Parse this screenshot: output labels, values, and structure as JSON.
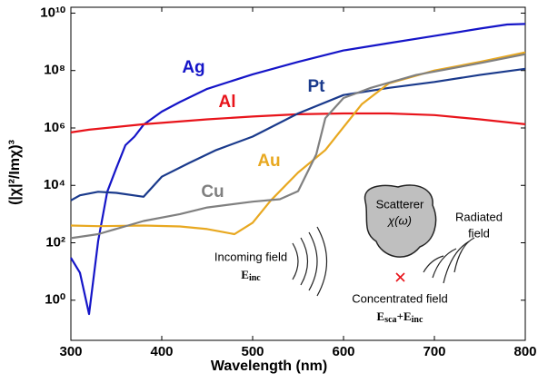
{
  "chart_data": {
    "type": "line",
    "xlabel": "Wavelength (nm)",
    "ylabel": "(|χ|²/Imχ)³",
    "log_y": true,
    "xlim": [
      300,
      800
    ],
    "xticks": [
      300,
      400,
      500,
      600,
      700,
      800
    ],
    "ylim": [
      0.04,
      16000000000
    ],
    "yticks": [
      {
        "value": 1,
        "label": "10⁰"
      },
      {
        "value": 100,
        "label": "10²"
      },
      {
        "value": 10000,
        "label": "10⁴"
      },
      {
        "value": 1000000,
        "label": "10⁶"
      },
      {
        "value": 100000000,
        "label": "10⁸"
      },
      {
        "value": 10000000000,
        "label": "10¹⁰"
      }
    ],
    "series": [
      {
        "name": "Ag",
        "color": "#1515c8",
        "x": [
          300,
          310,
          320,
          330,
          340,
          350,
          360,
          370,
          380,
          400,
          420,
          450,
          500,
          550,
          600,
          650,
          700,
          750,
          780,
          800
        ],
        "values": [
          30,
          9,
          0.33,
          115,
          6000,
          40000,
          250000,
          500000,
          1300000,
          3700000,
          8000000,
          23000000,
          74000000,
          200000000,
          500000000,
          900000000,
          1600000000,
          2900000000,
          4000000000,
          4200000000
        ]
      },
      {
        "name": "Al",
        "color": "#e8141b",
        "x": [
          300,
          320,
          380,
          450,
          500,
          550,
          600,
          650,
          700,
          750,
          800
        ],
        "values": [
          700000,
          870000,
          1350000,
          2000000,
          2500000,
          3000000,
          3200000,
          3200000,
          2800000,
          2000000,
          1350000
        ]
      },
      {
        "name": "Pt",
        "color": "#1a3a8c",
        "x": [
          300,
          310,
          330,
          350,
          380,
          400,
          430,
          460,
          500,
          550,
          600,
          650,
          700,
          750,
          800
        ],
        "values": [
          3000,
          4500,
          6000,
          5500,
          4000,
          20000,
          60000,
          170000,
          500000,
          3200000,
          14000000,
          25000000,
          40000000,
          70000000,
          115000000
        ]
      },
      {
        "name": "Au",
        "color": "#e8a820",
        "x": [
          300,
          330,
          380,
          420,
          450,
          480,
          500,
          520,
          550,
          580,
          600,
          620,
          650,
          700,
          750,
          800
        ],
        "values": [
          400,
          380,
          400,
          370,
          300,
          200,
          500,
          3000,
          28000,
          170000,
          1070000,
          6700000,
          36000000,
          100000000,
          200000000,
          430000000
        ]
      },
      {
        "name": "Cu",
        "color": "#808080",
        "x": [
          300,
          330,
          380,
          420,
          450,
          500,
          530,
          550,
          570,
          580,
          600,
          630,
          680,
          750,
          800
        ],
        "values": [
          145,
          200,
          575,
          1000,
          1700,
          2700,
          3300,
          6300,
          120000,
          2200000,
          11000000,
          25000000,
          70000000,
          180000000,
          370000000
        ]
      }
    ],
    "inset": {
      "scatterer": "Scatterer",
      "chi": "χ(ω)",
      "radiated": [
        "Radiated",
        "field"
      ],
      "incoming": "Incoming field",
      "incoming_symbol": [
        "E",
        "inc"
      ],
      "concentrated": "Concentrated field",
      "concentrated_symbol": [
        "E",
        "sca",
        "+E",
        "inc"
      ]
    }
  }
}
